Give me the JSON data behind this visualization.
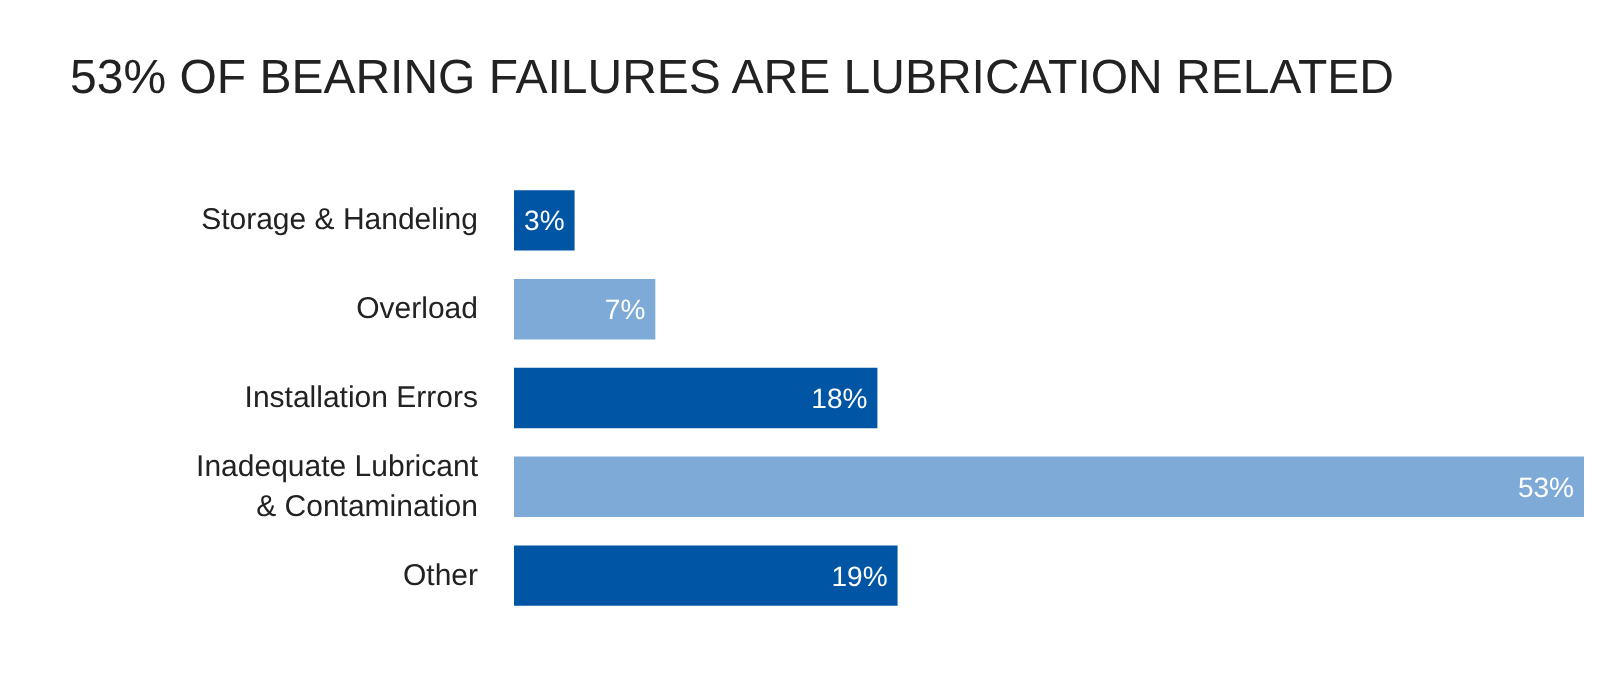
{
  "chart_data": {
    "type": "bar",
    "orientation": "horizontal",
    "title": "53% OF BEARING FAILURES ARE LUBRICATION RELATED",
    "categories": [
      "Storage & Handeling",
      "Overload",
      "Installation Errors",
      "Inadequate Lubricant\n& Contamination",
      "Other"
    ],
    "values": [
      3,
      7,
      18,
      53,
      19
    ],
    "colors": [
      "#0055a4",
      "#7eaad7",
      "#0055a4",
      "#7eaad7",
      "#0055a4"
    ],
    "value_labels": [
      "3%",
      "7%",
      "18%",
      "53%",
      "19%"
    ]
  }
}
